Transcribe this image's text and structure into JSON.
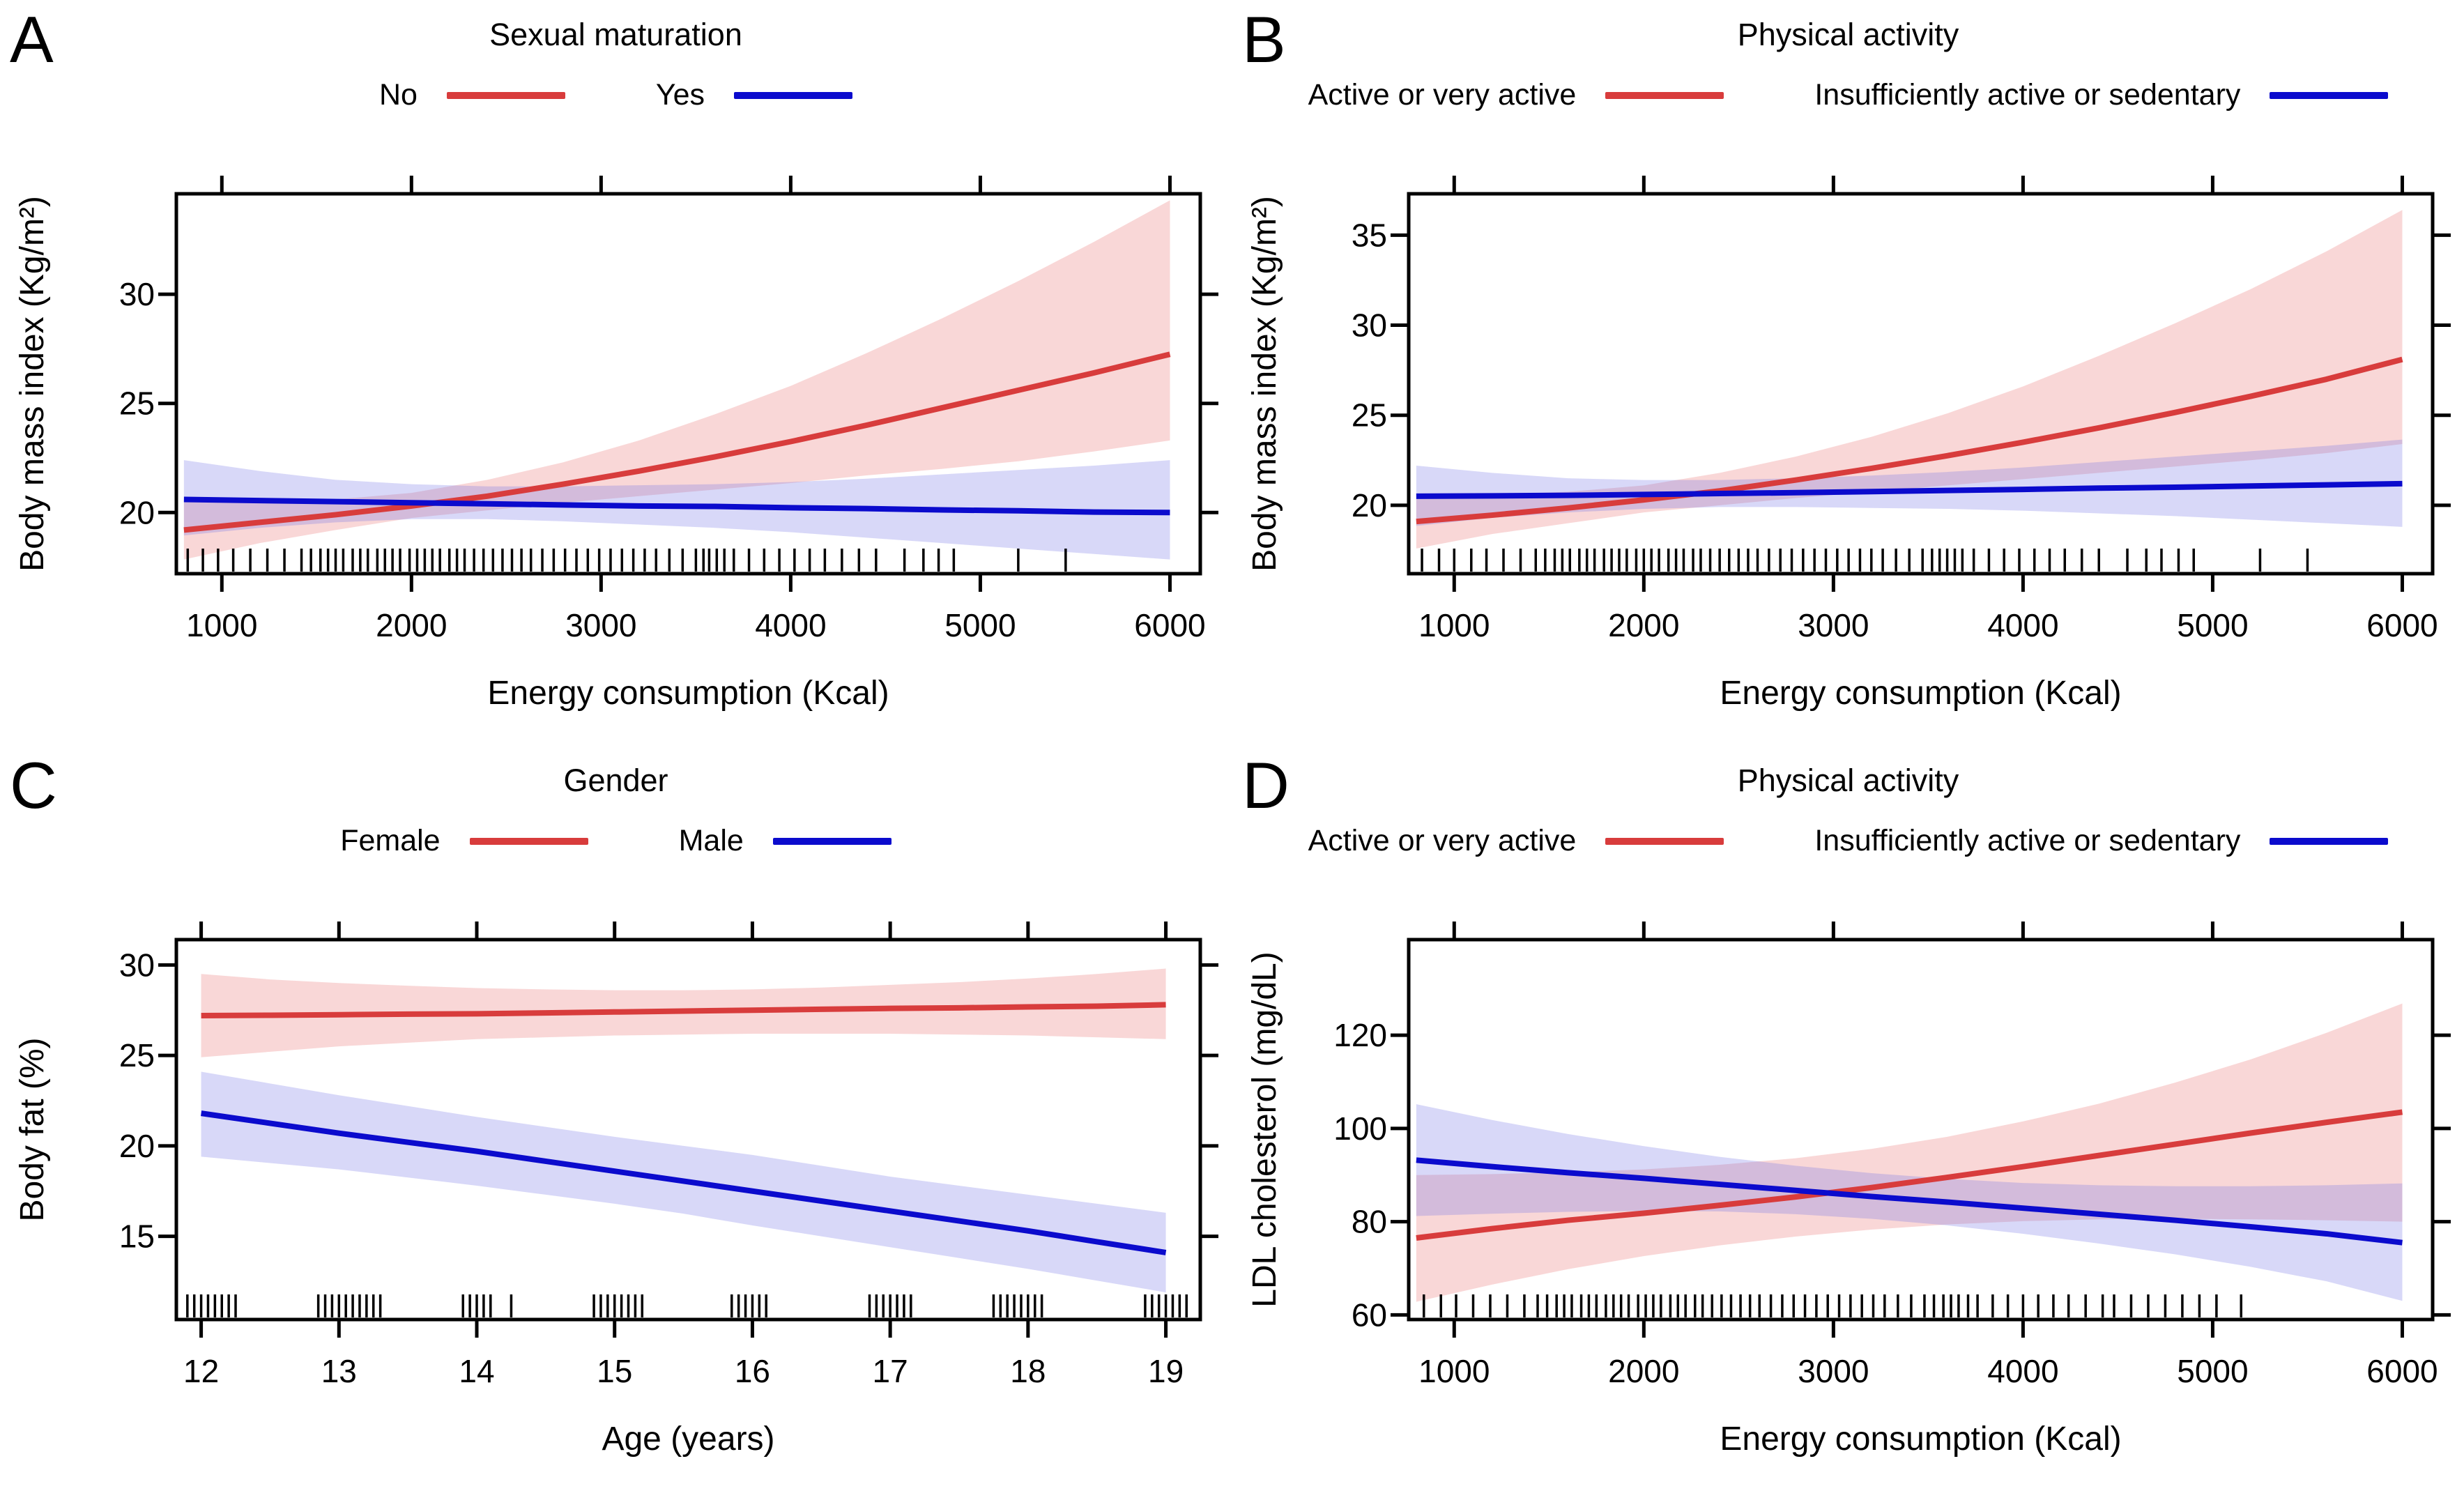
{
  "chart_data": {
    "type": "line",
    "description": "Four-panel regression figure: fitted lines with 95% confidence bands and rug plots",
    "panels": [
      {
        "letter": "A",
        "legend": {
          "title": "Sexual maturation",
          "items": [
            {
              "label": "No",
              "color": "#D83C3C"
            },
            {
              "label": "Yes",
              "color": "#0B0BCD"
            }
          ]
        },
        "xlabel": "Energy consumption (Kcal)",
        "ylabel": "Body mass index (Kg/m²)",
        "xlim": [
          760,
          6160
        ],
        "ylim": [
          17.2,
          34.6
        ],
        "xticks": [
          1000,
          2000,
          3000,
          4000,
          5000,
          6000
        ],
        "yticks": [
          20,
          25,
          30
        ],
        "series": [
          {
            "name": "No",
            "color": "#D83C3C",
            "band": "rgba(235,110,110,0.28)",
            "x": [
              800,
              1200,
              1600,
              2000,
              2400,
              2800,
              3200,
              3600,
              4000,
              4400,
              4800,
              5200,
              5600,
              6000
            ],
            "y": [
              19.2,
              19.55,
              19.9,
              20.3,
              20.75,
              21.3,
              21.9,
              22.55,
              23.25,
              24.0,
              24.8,
              25.6,
              26.4,
              27.25
            ],
            "upper": [
              20.5,
              20.5,
              20.6,
              20.9,
              21.5,
              22.3,
              23.3,
              24.5,
              25.8,
              27.3,
              28.9,
              30.6,
              32.4,
              34.3
            ],
            "lower": [
              17.85,
              18.6,
              19.2,
              19.75,
              20.1,
              20.45,
              20.75,
              21.05,
              21.35,
              21.7,
              22.0,
              22.35,
              22.8,
              23.3
            ]
          },
          {
            "name": "Yes",
            "color": "#0B0BCD",
            "band": "rgba(115,115,230,0.28)",
            "x": [
              800,
              1200,
              1600,
              2000,
              2400,
              2800,
              3200,
              3600,
              4000,
              4400,
              4800,
              5200,
              5600,
              6000
            ],
            "y": [
              20.6,
              20.55,
              20.5,
              20.45,
              20.4,
              20.35,
              20.3,
              20.28,
              20.22,
              20.18,
              20.12,
              20.08,
              20.02,
              20.0
            ],
            "upper": [
              22.4,
              21.9,
              21.5,
              21.3,
              21.2,
              21.2,
              21.25,
              21.3,
              21.4,
              21.55,
              21.75,
              21.95,
              22.15,
              22.4
            ],
            "lower": [
              18.95,
              19.3,
              19.55,
              19.7,
              19.7,
              19.6,
              19.45,
              19.3,
              19.1,
              18.85,
              18.6,
              18.35,
              18.1,
              17.85
            ]
          }
        ],
        "rug": [
          820,
          900,
          980,
          1060,
          1150,
          1240,
          1330,
          1420,
          1470,
          1520,
          1560,
          1600,
          1640,
          1690,
          1730,
          1770,
          1820,
          1860,
          1900,
          1940,
          1990,
          2030,
          2070,
          2110,
          2150,
          2200,
          2240,
          2280,
          2330,
          2380,
          2430,
          2480,
          2530,
          2580,
          2630,
          2690,
          2750,
          2810,
          2870,
          2930,
          2990,
          3050,
          3110,
          3170,
          3230,
          3290,
          3360,
          3430,
          3500,
          3540,
          3570,
          3610,
          3650,
          3700,
          3780,
          3860,
          3940,
          4020,
          4100,
          4180,
          4270,
          4360,
          4450,
          4600,
          4700,
          4780,
          4860,
          5200,
          5450
        ]
      },
      {
        "letter": "B",
        "legend": {
          "title": "Physical activity",
          "items": [
            {
              "label": "Active or very active",
              "color": "#D83C3C"
            },
            {
              "label": "Insufficiently active or sedentary",
              "color": "#0B0BCD"
            }
          ]
        },
        "xlabel": "Energy consumption (Kcal)",
        "ylabel": "Body mass index (Kg/m²)",
        "xlim": [
          760,
          6160
        ],
        "ylim": [
          16.2,
          37.3
        ],
        "xticks": [
          1000,
          2000,
          3000,
          4000,
          5000,
          6000
        ],
        "yticks": [
          20,
          25,
          30,
          35
        ],
        "series": [
          {
            "name": "Active or very active",
            "color": "#D83C3C",
            "band": "rgba(235,110,110,0.28)",
            "x": [
              800,
              1200,
              1600,
              2000,
              2400,
              2800,
              3200,
              3600,
              4000,
              4400,
              4800,
              5200,
              5600,
              6000
            ],
            "y": [
              19.1,
              19.45,
              19.85,
              20.3,
              20.8,
              21.4,
              22.05,
              22.75,
              23.5,
              24.3,
              25.15,
              26.05,
              27.0,
              28.1
            ],
            "upper": [
              20.6,
              20.6,
              20.75,
              21.1,
              21.8,
              22.7,
              23.8,
              25.1,
              26.6,
              28.3,
              30.1,
              32.0,
              34.1,
              36.4
            ],
            "lower": [
              17.6,
              18.4,
              19.0,
              19.6,
              20.0,
              20.4,
              20.75,
              21.1,
              21.45,
              21.8,
              22.15,
              22.5,
              22.9,
              23.4
            ]
          },
          {
            "name": "Insufficiently active or sedentary",
            "color": "#0B0BCD",
            "band": "rgba(115,115,230,0.28)",
            "x": [
              800,
              1200,
              1600,
              2000,
              2400,
              2800,
              3200,
              3600,
              4000,
              4400,
              4800,
              5200,
              5600,
              6000
            ],
            "y": [
              20.5,
              20.52,
              20.55,
              20.6,
              20.65,
              20.7,
              20.76,
              20.82,
              20.88,
              20.95,
              21.0,
              21.07,
              21.13,
              21.2
            ],
            "upper": [
              22.2,
              21.8,
              21.5,
              21.4,
              21.4,
              21.5,
              21.65,
              21.85,
              22.1,
              22.4,
              22.7,
              23.0,
              23.3,
              23.65
            ],
            "lower": [
              18.85,
              19.3,
              19.6,
              19.8,
              19.9,
              19.9,
              19.85,
              19.8,
              19.7,
              19.55,
              19.4,
              19.2,
              19.0,
              18.8
            ]
          }
        ],
        "rug": [
          830,
          920,
          1000,
          1090,
          1170,
          1260,
          1350,
          1430,
          1480,
          1530,
          1570,
          1610,
          1660,
          1700,
          1740,
          1790,
          1830,
          1870,
          1910,
          1960,
          2000,
          2040,
          2080,
          2130,
          2170,
          2210,
          2260,
          2300,
          2350,
          2400,
          2450,
          2500,
          2550,
          2600,
          2660,
          2720,
          2780,
          2840,
          2900,
          2960,
          3020,
          3080,
          3140,
          3200,
          3260,
          3330,
          3400,
          3470,
          3520,
          3560,
          3600,
          3640,
          3680,
          3740,
          3820,
          3900,
          3980,
          4060,
          4140,
          4220,
          4310,
          4400,
          4550,
          4650,
          4730,
          4820,
          4900,
          5250,
          5500
        ]
      },
      {
        "letter": "C",
        "legend": {
          "title": "Gender",
          "items": [
            {
              "label": "Female",
              "color": "#D83C3C"
            },
            {
              "label": "Male",
              "color": "#0B0BCD"
            }
          ]
        },
        "xlabel": "Age (years)",
        "ylabel": "Body fat (%)",
        "xlim": [
          11.82,
          19.25
        ],
        "ylim": [
          10.4,
          31.4
        ],
        "xticks": [
          12,
          13,
          14,
          15,
          16,
          17,
          18,
          19
        ],
        "yticks": [
          15,
          20,
          25,
          30
        ],
        "series": [
          {
            "name": "Female",
            "color": "#D83C3C",
            "band": "rgba(235,110,110,0.28)",
            "x": [
              12,
              12.5,
              13,
              13.5,
              14,
              14.5,
              15,
              15.5,
              16,
              16.5,
              17,
              17.5,
              18,
              18.5,
              19
            ],
            "y": [
              27.2,
              27.22,
              27.25,
              27.28,
              27.3,
              27.35,
              27.4,
              27.45,
              27.5,
              27.55,
              27.6,
              27.63,
              27.68,
              27.72,
              27.8
            ],
            "upper": [
              29.5,
              29.2,
              29.0,
              28.85,
              28.72,
              28.65,
              28.6,
              28.6,
              28.65,
              28.75,
              28.9,
              29.05,
              29.25,
              29.5,
              29.8
            ],
            "lower": [
              24.9,
              25.2,
              25.5,
              25.7,
              25.9,
              26.0,
              26.1,
              26.15,
              26.2,
              26.2,
              26.2,
              26.15,
              26.1,
              26.0,
              25.9
            ]
          },
          {
            "name": "Male",
            "color": "#0B0BCD",
            "band": "rgba(115,115,230,0.28)",
            "x": [
              12,
              12.5,
              13,
              13.5,
              14,
              14.5,
              15,
              15.5,
              16,
              16.5,
              17,
              17.5,
              18,
              18.5,
              19
            ],
            "y": [
              21.8,
              21.25,
              20.7,
              20.2,
              19.7,
              19.15,
              18.6,
              18.05,
              17.5,
              16.95,
              16.4,
              15.85,
              15.3,
              14.7,
              14.1
            ],
            "upper": [
              24.1,
              23.45,
              22.8,
              22.2,
              21.6,
              21.05,
              20.5,
              20.0,
              19.5,
              18.9,
              18.3,
              17.8,
              17.3,
              16.8,
              16.3
            ],
            "lower": [
              19.4,
              19.05,
              18.7,
              18.25,
              17.8,
              17.3,
              16.8,
              16.25,
              15.6,
              15.0,
              14.4,
              13.8,
              13.2,
              12.55,
              11.9
            ]
          }
        ],
        "rug": [
          11.9,
          11.95,
          12.0,
          12.05,
          12.1,
          12.15,
          12.2,
          12.25,
          12.85,
          12.9,
          12.95,
          13.0,
          13.05,
          13.1,
          13.15,
          13.2,
          13.25,
          13.3,
          13.9,
          13.95,
          14.0,
          14.05,
          14.1,
          14.25,
          14.85,
          14.9,
          14.95,
          15.0,
          15.05,
          15.1,
          15.15,
          15.2,
          15.85,
          15.9,
          15.95,
          16.0,
          16.05,
          16.1,
          16.85,
          16.9,
          16.95,
          17.0,
          17.05,
          17.1,
          17.15,
          17.75,
          17.8,
          17.85,
          17.9,
          17.95,
          18.0,
          18.05,
          18.1,
          18.85,
          18.9,
          18.95,
          19.0,
          19.05,
          19.1,
          19.15
        ]
      },
      {
        "letter": "D",
        "legend": {
          "title": "Physical activity",
          "items": [
            {
              "label": "Active or very active",
              "color": "#D83C3C"
            },
            {
              "label": "Insufficiently active or sedentary",
              "color": "#0B0BCD"
            }
          ]
        },
        "xlabel": "Energy consumption (Kcal)",
        "ylabel": "LDL cholesterol (mg/dL)",
        "xlim": [
          760,
          6160
        ],
        "ylim": [
          59.0,
          140.5
        ],
        "xticks": [
          1000,
          2000,
          3000,
          4000,
          5000,
          6000
        ],
        "yticks": [
          60,
          80,
          100,
          120
        ],
        "series": [
          {
            "name": "Active or very active",
            "color": "#D83C3C",
            "band": "rgba(235,110,110,0.28)",
            "x": [
              800,
              1200,
              1600,
              2000,
              2400,
              2800,
              3200,
              3600,
              4000,
              4400,
              4800,
              5200,
              5600,
              6000
            ],
            "y": [
              76.5,
              78.5,
              80.3,
              81.8,
              83.5,
              85.3,
              87.3,
              89.5,
              91.8,
              94.2,
              96.6,
              99.0,
              101.3,
              103.5
            ],
            "upper": [
              90.0,
              90.2,
              90.6,
              91.2,
              92.2,
              93.6,
              95.6,
              98.2,
              101.5,
              105.3,
              109.8,
              114.8,
              120.5,
              126.8
            ],
            "lower": [
              62.8,
              66.5,
              69.8,
              72.6,
              74.9,
              76.8,
              78.3,
              79.4,
              80.1,
              80.5,
              80.6,
              80.5,
              80.3,
              80.0
            ]
          },
          {
            "name": "Insufficiently active or sedentary",
            "color": "#0B0BCD",
            "band": "rgba(115,115,230,0.28)",
            "x": [
              800,
              1200,
              1600,
              2000,
              2400,
              2800,
              3200,
              3600,
              4000,
              4400,
              4800,
              5200,
              5600,
              6000
            ],
            "y": [
              93.2,
              91.8,
              90.5,
              89.3,
              88.0,
              86.7,
              85.4,
              84.2,
              82.9,
              81.6,
              80.3,
              78.9,
              77.4,
              75.5
            ],
            "upper": [
              105.2,
              101.8,
              98.8,
              96.2,
              93.9,
              92.0,
              90.4,
              89.2,
              88.3,
              87.8,
              87.6,
              87.6,
              87.8,
              88.2
            ],
            "lower": [
              81.2,
              81.7,
              82.1,
              82.3,
              82.2,
              81.6,
              80.6,
              79.2,
              77.4,
              75.3,
              73.0,
              70.3,
              67.2,
              63.0
            ]
          }
        ],
        "rug": [
          840,
          930,
          1010,
          1100,
          1190,
          1280,
          1370,
          1440,
          1490,
          1540,
          1580,
          1620,
          1670,
          1710,
          1750,
          1800,
          1840,
          1880,
          1920,
          1970,
          2010,
          2050,
          2090,
          2140,
          2180,
          2220,
          2270,
          2310,
          2360,
          2410,
          2460,
          2510,
          2560,
          2610,
          2670,
          2730,
          2790,
          2850,
          2910,
          2970,
          3030,
          3090,
          3150,
          3210,
          3270,
          3340,
          3410,
          3480,
          3530,
          3580,
          3620,
          3660,
          3710,
          3760,
          3840,
          3920,
          4000,
          4080,
          4160,
          4240,
          4330,
          4420,
          4480,
          4570,
          4660,
          4750,
          4840,
          4930,
          5020,
          5150
        ]
      }
    ]
  }
}
